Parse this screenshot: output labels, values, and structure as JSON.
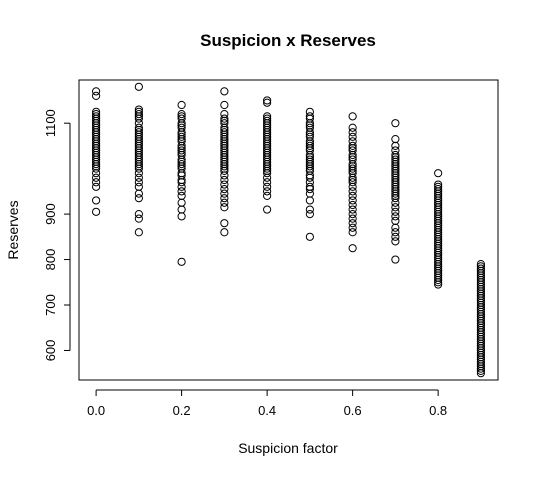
{
  "chart_data": {
    "type": "scatter",
    "title": "Suspicion x Reserves",
    "xlabel": "Suspicion factor",
    "ylabel": "Reserves",
    "xlim": [
      -0.04,
      0.94
    ],
    "ylim": [
      535,
      1195
    ],
    "x_ticks": [
      0.0,
      0.2,
      0.4,
      0.6,
      0.8
    ],
    "x_tick_labels": [
      "0.0",
      "0.2",
      "0.4",
      "0.6",
      "0.8"
    ],
    "y_ticks": [
      600,
      700,
      800,
      900,
      1100
    ],
    "y_tick_labels": [
      "600",
      "700",
      "800",
      "900",
      "1100"
    ],
    "grid": false,
    "legend": "none",
    "point_marker": "open-circle",
    "point_color": "#000000",
    "x": [
      0.0,
      0.1,
      0.2,
      0.3,
      0.4,
      0.5,
      0.6,
      0.7,
      0.8,
      0.9
    ],
    "y_by_x": [
      [
        1170,
        1160,
        1125,
        1120,
        1115,
        1110,
        1105,
        1100,
        1095,
        1090,
        1085,
        1080,
        1075,
        1070,
        1065,
        1060,
        1055,
        1050,
        1045,
        1040,
        1035,
        1030,
        1025,
        1020,
        1015,
        1010,
        1005,
        1000,
        990,
        980,
        970,
        960,
        930,
        905
      ],
      [
        1180,
        1130,
        1125,
        1120,
        1115,
        1110,
        1100,
        1090,
        1085,
        1080,
        1075,
        1070,
        1065,
        1060,
        1055,
        1050,
        1045,
        1040,
        1035,
        1030,
        1025,
        1020,
        1015,
        1010,
        1005,
        1000,
        990,
        980,
        970,
        960,
        945,
        935,
        900,
        890,
        860
      ],
      [
        1140,
        1120,
        1115,
        1110,
        1100,
        1095,
        1090,
        1080,
        1075,
        1070,
        1065,
        1060,
        1050,
        1045,
        1040,
        1035,
        1030,
        1020,
        1015,
        1010,
        1005,
        1000,
        990,
        985,
        975,
        970,
        960,
        950,
        940,
        925,
        910,
        895,
        795
      ],
      [
        1170,
        1140,
        1120,
        1110,
        1105,
        1100,
        1090,
        1085,
        1080,
        1075,
        1070,
        1065,
        1060,
        1055,
        1050,
        1045,
        1040,
        1035,
        1030,
        1025,
        1020,
        1015,
        1010,
        1005,
        1000,
        995,
        985,
        975,
        965,
        955,
        945,
        935,
        925,
        915,
        880,
        860
      ],
      [
        1150,
        1145,
        1115,
        1110,
        1105,
        1100,
        1095,
        1090,
        1085,
        1080,
        1075,
        1070,
        1065,
        1060,
        1055,
        1050,
        1045,
        1040,
        1035,
        1030,
        1025,
        1020,
        1015,
        1010,
        1005,
        1000,
        995,
        990,
        980,
        970,
        960,
        950,
        940,
        910
      ],
      [
        1125,
        1115,
        1110,
        1100,
        1095,
        1090,
        1080,
        1075,
        1070,
        1060,
        1055,
        1050,
        1045,
        1040,
        1030,
        1025,
        1020,
        1015,
        1010,
        1005,
        1000,
        995,
        985,
        980,
        970,
        960,
        955,
        945,
        930,
        910,
        900,
        850
      ],
      [
        1115,
        1090,
        1080,
        1070,
        1060,
        1050,
        1045,
        1040,
        1030,
        1025,
        1020,
        1010,
        1005,
        1000,
        995,
        990,
        980,
        975,
        970,
        960,
        950,
        940,
        930,
        920,
        910,
        900,
        890,
        880,
        870,
        860,
        825
      ],
      [
        1100,
        1065,
        1050,
        1040,
        1030,
        1025,
        1020,
        1015,
        1010,
        1005,
        1000,
        995,
        990,
        985,
        980,
        975,
        970,
        965,
        960,
        955,
        950,
        945,
        940,
        935,
        925,
        915,
        905,
        895,
        885,
        870,
        860,
        850,
        840,
        800
      ],
      [
        990,
        965,
        960,
        955,
        950,
        945,
        940,
        935,
        930,
        925,
        920,
        915,
        910,
        905,
        900,
        895,
        890,
        885,
        880,
        875,
        870,
        865,
        860,
        855,
        850,
        845,
        840,
        835,
        830,
        825,
        820,
        815,
        810,
        805,
        800,
        795,
        790,
        785,
        780,
        775,
        770,
        765,
        760,
        755,
        750,
        745
      ],
      [
        790,
        785,
        780,
        775,
        770,
        765,
        760,
        755,
        750,
        745,
        740,
        735,
        730,
        725,
        720,
        715,
        710,
        705,
        700,
        695,
        690,
        685,
        680,
        675,
        670,
        665,
        660,
        655,
        650,
        645,
        640,
        635,
        630,
        625,
        620,
        615,
        610,
        605,
        600,
        595,
        590,
        585,
        580,
        575,
        570,
        565,
        560,
        555,
        550
      ]
    ]
  }
}
